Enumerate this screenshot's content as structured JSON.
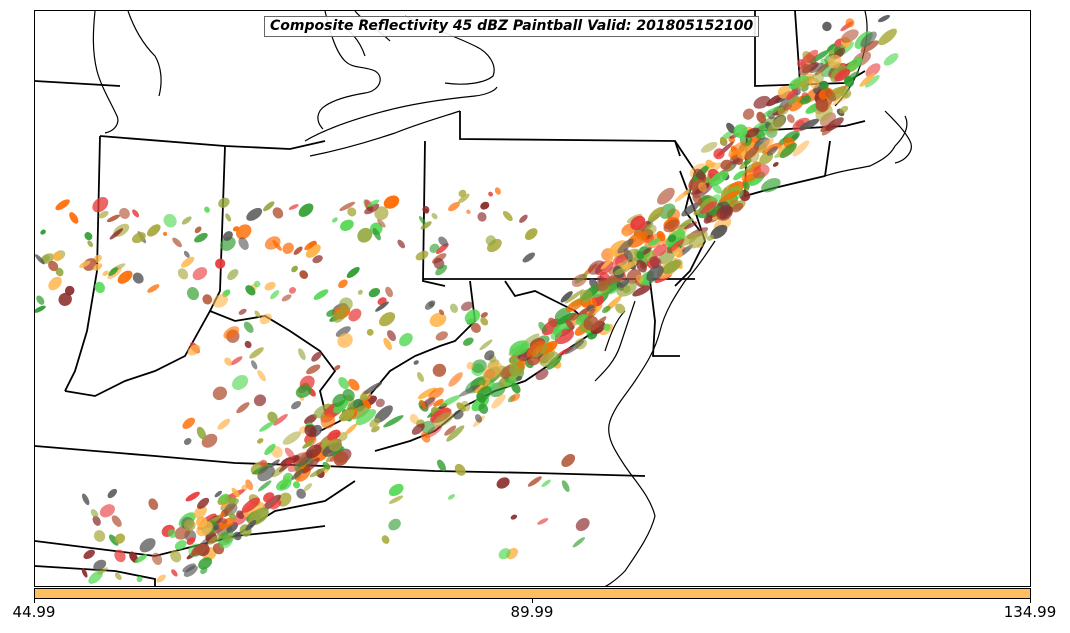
{
  "title": "Composite Reflectivity 45 dBZ Paintball Valid: 201805152100",
  "map": {
    "region": "eastern-united-states",
    "boundary_color": "#000000",
    "ensemble_colors": [
      "#2e9c2e",
      "#4fd64f",
      "#8fa63a",
      "#a8a83a",
      "#8b2a2a",
      "#e83a3a",
      "#ff6a00",
      "#ffb347",
      "#555555",
      "#b05030"
    ]
  },
  "colorbar": {
    "color": "#ffbf5e",
    "ticks": [
      {
        "label": "44.99",
        "value": 44.99
      },
      {
        "label": "89.99",
        "value": 89.99
      },
      {
        "label": "134.99",
        "value": 134.99
      }
    ],
    "range": [
      44.99,
      134.99
    ]
  }
}
